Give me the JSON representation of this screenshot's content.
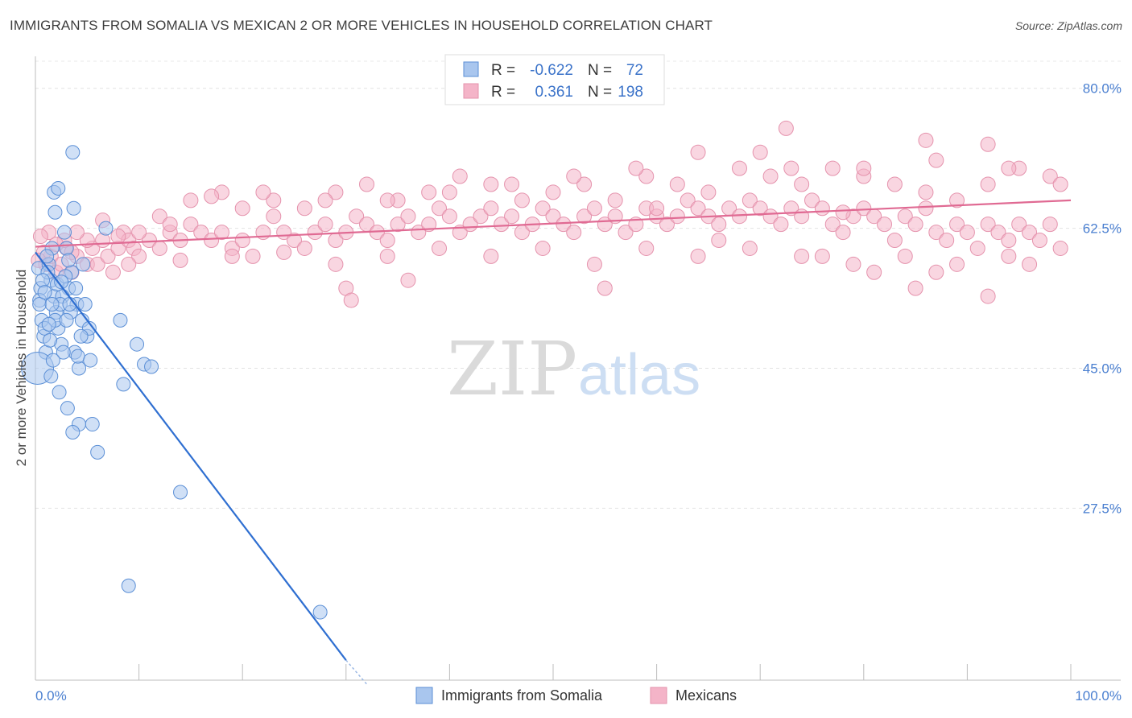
{
  "title": "IMMIGRANTS FROM SOMALIA VS MEXICAN 2 OR MORE VEHICLES IN HOUSEHOLD CORRELATION CHART",
  "source": "Source: ZipAtlas.com",
  "colors": {
    "blue_fill": "#a9c6ee",
    "blue_stroke": "#5b8fd6",
    "blue_line": "#2f6fd1",
    "pink_fill": "#f4b4c8",
    "pink_stroke": "#e593ad",
    "pink_line": "#e06a93",
    "axis_text": "#4a7fd0"
  },
  "chart_data": {
    "type": "scatter",
    "xlabel": "",
    "ylabel": "2 or more Vehicles in Household",
    "xlim": [
      0,
      100
    ],
    "ylim": [
      6,
      84
    ],
    "x_tick_labels": [
      "0.0%",
      "100.0%"
    ],
    "y_ticks": [
      27.5,
      45.0,
      62.5,
      80.0
    ],
    "y_tick_labels": [
      "27.5%",
      "45.0%",
      "62.5%",
      "80.0%"
    ],
    "grid": true,
    "legend_position": "top-center",
    "stats": [
      {
        "r_label": "R =",
        "r": "-0.622",
        "n_label": "N =",
        "n": "72"
      },
      {
        "r_label": "R =",
        "r": "0.361",
        "n_label": "N =",
        "n": "198"
      }
    ],
    "series": [
      {
        "name": "Immigrants from Somalia",
        "color": "#a9c6ee",
        "trend": {
          "x": [
            0,
            30
          ],
          "y": [
            59.5,
            8.5
          ],
          "dash_x": [
            30,
            32
          ],
          "dash_y": [
            8.5,
            5.5
          ]
        },
        "points": [
          [
            0.3,
            57.5
          ],
          [
            0.5,
            55
          ],
          [
            0.4,
            53.5
          ],
          [
            0.6,
            51
          ],
          [
            0.8,
            49
          ],
          [
            1,
            47
          ],
          [
            0.2,
            45
          ],
          [
            1.3,
            58
          ],
          [
            1.5,
            56
          ],
          [
            1.8,
            54
          ],
          [
            2,
            52
          ],
          [
            2.2,
            50
          ],
          [
            2.5,
            48
          ],
          [
            1.6,
            60
          ],
          [
            2.8,
            62
          ],
          [
            3,
            60
          ],
          [
            3.5,
            57
          ],
          [
            3.2,
            55
          ],
          [
            4,
            53
          ],
          [
            4.5,
            51
          ],
          [
            5,
            49
          ],
          [
            3.8,
            47
          ],
          [
            4.2,
            45
          ],
          [
            4.6,
            58
          ],
          [
            2.6,
            54
          ],
          [
            3.4,
            52
          ],
          [
            5.2,
            50
          ],
          [
            1.2,
            57
          ],
          [
            2.4,
            53
          ],
          [
            1.9,
            51
          ],
          [
            1.5,
            44
          ],
          [
            2.3,
            42
          ],
          [
            3.1,
            40
          ],
          [
            4.2,
            38
          ],
          [
            5.5,
            38
          ],
          [
            3.6,
            37
          ],
          [
            6,
            34.5
          ],
          [
            6.8,
            62.5
          ],
          [
            1.8,
            67
          ],
          [
            2.2,
            67.5
          ],
          [
            1.9,
            64.5
          ],
          [
            3.7,
            65
          ],
          [
            3.6,
            72
          ],
          [
            8.2,
            51
          ],
          [
            9.8,
            48
          ],
          [
            10.5,
            45.5
          ],
          [
            11.2,
            45.2
          ],
          [
            8.5,
            43
          ],
          [
            14,
            29.5
          ],
          [
            9,
            17.8
          ],
          [
            27.5,
            14.5
          ],
          [
            0.4,
            53
          ],
          [
            0.9,
            50
          ],
          [
            1.4,
            48.5
          ],
          [
            2.1,
            55.5
          ],
          [
            3.3,
            53
          ],
          [
            4.4,
            49
          ],
          [
            2.7,
            47
          ],
          [
            1.1,
            59
          ],
          [
            3.9,
            55
          ],
          [
            4.8,
            53
          ],
          [
            2.9,
            56.5
          ],
          [
            0.7,
            56
          ],
          [
            1.6,
            53
          ],
          [
            2.5,
            55.8
          ],
          [
            3.2,
            58.5
          ],
          [
            0.9,
            54.5
          ],
          [
            1.3,
            50.5
          ],
          [
            1.7,
            46
          ],
          [
            3,
            51
          ],
          [
            4.1,
            46.5
          ],
          [
            5.3,
            46
          ]
        ],
        "sizes": {
          "0,45": 22
        }
      },
      {
        "name": "Mexicans",
        "color": "#f4b4c8",
        "trend": {
          "x": [
            0,
            100
          ],
          "y": [
            60.2,
            66
          ]
        },
        "points": [
          [
            1,
            58
          ],
          [
            1.5,
            59
          ],
          [
            2,
            57
          ],
          [
            2.5,
            58
          ],
          [
            3,
            60
          ],
          [
            3.5,
            57
          ],
          [
            4,
            59
          ],
          [
            5,
            58
          ],
          [
            5.5,
            60
          ],
          [
            6,
            58
          ],
          [
            6.5,
            61
          ],
          [
            7,
            59
          ],
          [
            7.5,
            57
          ],
          [
            8,
            60
          ],
          [
            8.5,
            62
          ],
          [
            9,
            61
          ],
          [
            9.5,
            60
          ],
          [
            10,
            59
          ],
          [
            11,
            61
          ],
          [
            12,
            60
          ],
          [
            13,
            62
          ],
          [
            14,
            61
          ],
          [
            15,
            63
          ],
          [
            16,
            62
          ],
          [
            17,
            61
          ],
          [
            18,
            62
          ],
          [
            19,
            60
          ],
          [
            20,
            61
          ],
          [
            21,
            59
          ],
          [
            22,
            62
          ],
          [
            23,
            64
          ],
          [
            24,
            62
          ],
          [
            25,
            61
          ],
          [
            26,
            60
          ],
          [
            27,
            62
          ],
          [
            28,
            63
          ],
          [
            29,
            61
          ],
          [
            30,
            62
          ],
          [
            31,
            64
          ],
          [
            32,
            63
          ],
          [
            33,
            62
          ],
          [
            34,
            61
          ],
          [
            35,
            63
          ],
          [
            36,
            64
          ],
          [
            37,
            62
          ],
          [
            38,
            63
          ],
          [
            39,
            65
          ],
          [
            40,
            64
          ],
          [
            41,
            62
          ],
          [
            42,
            63
          ],
          [
            43,
            64
          ],
          [
            44,
            65
          ],
          [
            45,
            63
          ],
          [
            46,
            64
          ],
          [
            47,
            62
          ],
          [
            48,
            63
          ],
          [
            49,
            65
          ],
          [
            50,
            64
          ],
          [
            51,
            63
          ],
          [
            52,
            62
          ],
          [
            53,
            64
          ],
          [
            54,
            65
          ],
          [
            55,
            63
          ],
          [
            56,
            64
          ],
          [
            57,
            62
          ],
          [
            58,
            63
          ],
          [
            59,
            65
          ],
          [
            60,
            64
          ],
          [
            61,
            63
          ],
          [
            62,
            64
          ],
          [
            63,
            66
          ],
          [
            64,
            65
          ],
          [
            65,
            64
          ],
          [
            66,
            63
          ],
          [
            67,
            65
          ],
          [
            68,
            64
          ],
          [
            69,
            66
          ],
          [
            70,
            65
          ],
          [
            71,
            64
          ],
          [
            72,
            63
          ],
          [
            73,
            65
          ],
          [
            74,
            64
          ],
          [
            75,
            66
          ],
          [
            76,
            65
          ],
          [
            77,
            63
          ],
          [
            78,
            62
          ],
          [
            79,
            64
          ],
          [
            80,
            65
          ],
          [
            81,
            64
          ],
          [
            82,
            63
          ],
          [
            83,
            61
          ],
          [
            84,
            64
          ],
          [
            85,
            63
          ],
          [
            86,
            65
          ],
          [
            87,
            62
          ],
          [
            88,
            61
          ],
          [
            89,
            63
          ],
          [
            90,
            62
          ],
          [
            91,
            60
          ],
          [
            92,
            63
          ],
          [
            93,
            62
          ],
          [
            94,
            61
          ],
          [
            95,
            63
          ],
          [
            96,
            62
          ],
          [
            97,
            61
          ],
          [
            98,
            63
          ],
          [
            12,
            64
          ],
          [
            15,
            66
          ],
          [
            18,
            67
          ],
          [
            20,
            65
          ],
          [
            23,
            66
          ],
          [
            26,
            65
          ],
          [
            29,
            67
          ],
          [
            32,
            68
          ],
          [
            35,
            66
          ],
          [
            38,
            67
          ],
          [
            41,
            69
          ],
          [
            44,
            68
          ],
          [
            47,
            66
          ],
          [
            50,
            67
          ],
          [
            53,
            68
          ],
          [
            56,
            66
          ],
          [
            59,
            69
          ],
          [
            62,
            68
          ],
          [
            65,
            67
          ],
          [
            68,
            70
          ],
          [
            71,
            69
          ],
          [
            74,
            68
          ],
          [
            77,
            70
          ],
          [
            80,
            69
          ],
          [
            83,
            68
          ],
          [
            86,
            67
          ],
          [
            89,
            66
          ],
          [
            92,
            68
          ],
          [
            95,
            70
          ],
          [
            98,
            69
          ],
          [
            9,
            58
          ],
          [
            14,
            58.5
          ],
          [
            19,
            59
          ],
          [
            24,
            59.5
          ],
          [
            29,
            58
          ],
          [
            34,
            59
          ],
          [
            39,
            60
          ],
          [
            44,
            59
          ],
          [
            49,
            60
          ],
          [
            54,
            58
          ],
          [
            59,
            60
          ],
          [
            64,
            59
          ],
          [
            69,
            60
          ],
          [
            74,
            59
          ],
          [
            79,
            58
          ],
          [
            84,
            59
          ],
          [
            89,
            58
          ],
          [
            94,
            59
          ],
          [
            99,
            60
          ],
          [
            30,
            55
          ],
          [
            30.5,
            53.5
          ],
          [
            36,
            56
          ],
          [
            55,
            55
          ],
          [
            85,
            55
          ],
          [
            92,
            54
          ],
          [
            96,
            58
          ],
          [
            76,
            59
          ],
          [
            81,
            57
          ],
          [
            87,
            57
          ],
          [
            64,
            72
          ],
          [
            58,
            70
          ],
          [
            70,
            72
          ],
          [
            73,
            70
          ],
          [
            80,
            70
          ],
          [
            87,
            71
          ],
          [
            92,
            73
          ],
          [
            94,
            70
          ],
          [
            99,
            68
          ],
          [
            46,
            68
          ],
          [
            52,
            69
          ],
          [
            40,
            67
          ],
          [
            34,
            66
          ],
          [
            28,
            66
          ],
          [
            22,
            67
          ],
          [
            17,
            66.5
          ],
          [
            13,
            63
          ],
          [
            10,
            62
          ],
          [
            8,
            61.5
          ],
          [
            6.5,
            63.5
          ],
          [
            5,
            61
          ],
          [
            4,
            62
          ],
          [
            3.5,
            59.5
          ],
          [
            2.8,
            61
          ],
          [
            2,
            60.5
          ],
          [
            1.3,
            62
          ],
          [
            0.8,
            59.5
          ],
          [
            0.5,
            61.5
          ],
          [
            0.3,
            58.5
          ],
          [
            72.5,
            75
          ],
          [
            86,
            73.5
          ],
          [
            60,
            65
          ],
          [
            66,
            61
          ],
          [
            78,
            64.5
          ]
        ],
        "sizes": {}
      }
    ]
  },
  "watermark": {
    "zip": "ZIP",
    "atlas": "atlas"
  },
  "bottom_legend": [
    "Immigrants from Somalia",
    "Mexicans"
  ]
}
